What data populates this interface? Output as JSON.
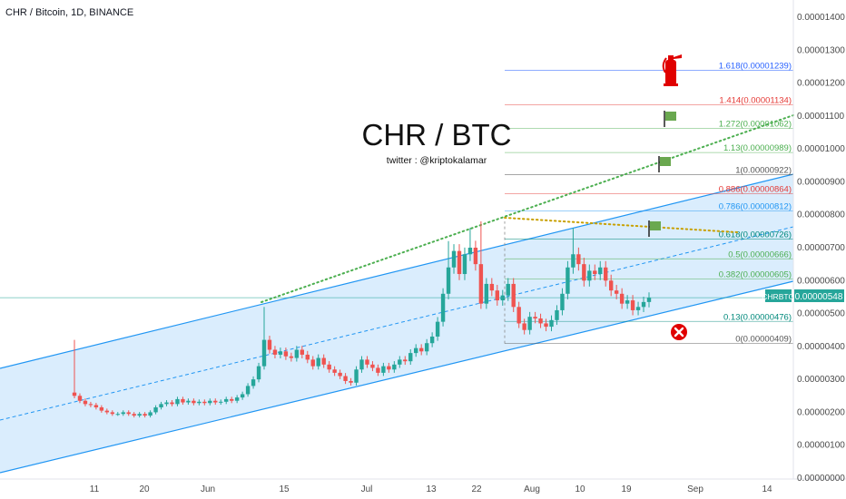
{
  "header": {
    "symbol_line": "CHR / Bitcoin, 1D, BINANCE"
  },
  "annotation": {
    "title": "CHR / BTC",
    "subtitle": "twitter : @kriptokalamar"
  },
  "price_badge": {
    "ticker": "CHRBTC",
    "value": "0.00000548",
    "color": "#26a69a"
  },
  "colors": {
    "up": "#26a69a",
    "down": "#ef5350",
    "channel": "#2196f3",
    "channel_fill": "#bbdefb",
    "trend": "#4caf50",
    "resistance": "#c8a000"
  },
  "icons": {
    "target": "green-flag-icon",
    "top": "fire-extinguisher-icon",
    "stop": "red-cross-icon"
  },
  "chart_data": {
    "type": "candlestick",
    "y_axis_labels": [
      "0.00001400",
      "0.00001300",
      "0.00001200",
      "0.00001100",
      "0.00001000",
      "0.00000900",
      "0.00000800",
      "0.00000700",
      "0.00000600",
      "0.00000500",
      "0.00000400",
      "0.00000300",
      "0.00000200",
      "0.00000100",
      "0.00000000"
    ],
    "x_axis_labels": [
      "11",
      "20",
      "Jun",
      "15",
      "Jul",
      "13",
      "22",
      "Aug",
      "10",
      "19",
      "Sep",
      "14"
    ],
    "last_price": 5.48e-06,
    "fib_levels": [
      {
        "label": "1.618(0.00001239)",
        "value": 1.239e-05,
        "color": "#2962ff"
      },
      {
        "label": "1.414(0.00001134)",
        "value": 1.134e-05,
        "color": "#e53935"
      },
      {
        "label": "1.272(0.00001062)",
        "value": 1.062e-05,
        "color": "#4caf50"
      },
      {
        "label": "1.13(0.00000989)",
        "value": 9.89e-06,
        "color": "#4caf50"
      },
      {
        "label": "1(0.00000922)",
        "value": 9.22e-06,
        "color": "#555555"
      },
      {
        "label": "0.886(0.00000864)",
        "value": 8.64e-06,
        "color": "#e53935"
      },
      {
        "label": "0.786(0.00000812)",
        "value": 8.12e-06,
        "color": "#2196f3"
      },
      {
        "label": "0.618(0.00000726)",
        "value": 7.26e-06,
        "color": "#00897b"
      },
      {
        "label": "0.5(0.00000666)",
        "value": 6.66e-06,
        "color": "#4caf50"
      },
      {
        "label": "0.382(0.00000605)",
        "value": 6.05e-06,
        "color": "#4caf50"
      },
      {
        "label": "0.13(0.00000476)",
        "value": 4.76e-06,
        "color": "#00897b"
      },
      {
        "label": "0(0.00000409)",
        "value": 4.09e-06,
        "color": "#555555"
      }
    ],
    "candles_close": [
      2.5e-06,
      2.35e-06,
      2.25e-06,
      2.22e-06,
      2.15e-06,
      2.05e-06,
      2e-06,
      1.95e-06,
      1.95e-06,
      2e-06,
      1.95e-06,
      1.9e-06,
      1.95e-06,
      1.9e-06,
      2e-06,
      2.15e-06,
      2.25e-06,
      2.3e-06,
      2.25e-06,
      2.4e-06,
      2.3e-06,
      2.35e-06,
      2.28e-06,
      2.32e-06,
      2.28e-06,
      2.35e-06,
      2.3e-06,
      2.32e-06,
      2.4e-06,
      2.35e-06,
      2.45e-06,
      2.55e-06,
      2.8e-06,
      3e-06,
      3.4e-06,
      4.2e-06,
      3.9e-06,
      3.75e-06,
      3.85e-06,
      3.7e-06,
      3.65e-06,
      3.9e-06,
      3.75e-06,
      3.6e-06,
      3.4e-06,
      3.65e-06,
      3.45e-06,
      3.3e-06,
      3.2e-06,
      3.1e-06,
      2.95e-06,
      2.9e-06,
      3.3e-06,
      3.6e-06,
      3.45e-06,
      3.35e-06,
      3.2e-06,
      3.4e-06,
      3.3e-06,
      3.45e-06,
      3.6e-06,
      3.55e-06,
      3.8e-06,
      3.95e-06,
      3.85e-06,
      4.1e-06,
      4.3e-06,
      4.75e-06,
      5.6e-06,
      6.4e-06,
      6.9e-06,
      6.2e-06,
      6.8e-06,
      7e-06,
      6.5e-06,
      5.3e-06,
      5.9e-06,
      5.7e-06,
      5.4e-06,
      5.55e-06,
      5.9e-06,
      5.2e-06,
      4.7e-06,
      4.5e-06,
      4.9e-06,
      4.85e-06,
      4.7e-06,
      4.6e-06,
      4.8e-06,
      5.1e-06,
      5.6e-06,
      6.4e-06,
      6.8e-06,
      6.5e-06,
      6e-06,
      6.3e-06,
      6.2e-06,
      6.4e-06,
      6e-06,
      5.7e-06,
      5.6e-06,
      5.3e-06,
      5.4e-06,
      5.1e-06,
      5.2e-06,
      5.35e-06,
      5.48e-06
    ]
  }
}
